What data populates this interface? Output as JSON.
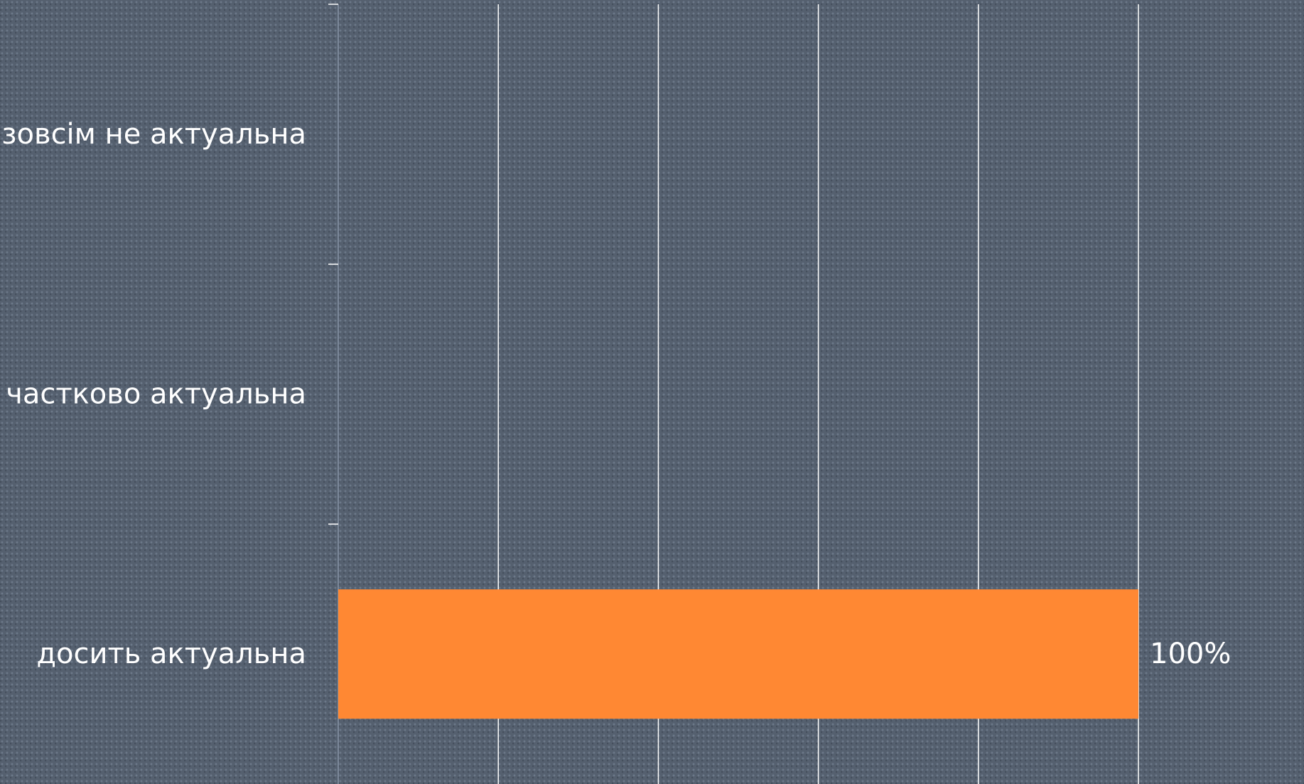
{
  "chart_data": {
    "type": "bar",
    "orientation": "horizontal",
    "categories": [
      "зовсім не актуальна",
      "частково актуальна",
      "досить актуальна"
    ],
    "values": [
      0,
      0,
      100
    ],
    "value_labels": [
      "",
      "",
      "100%"
    ],
    "xlim": [
      0,
      100
    ],
    "x_gridline_step": 20,
    "grid": true,
    "legend": "none",
    "bar_color": "#ff8833",
    "grid_color": "#ffffff",
    "text_color": "#ffffff",
    "title": "",
    "xlabel": "",
    "ylabel": ""
  }
}
